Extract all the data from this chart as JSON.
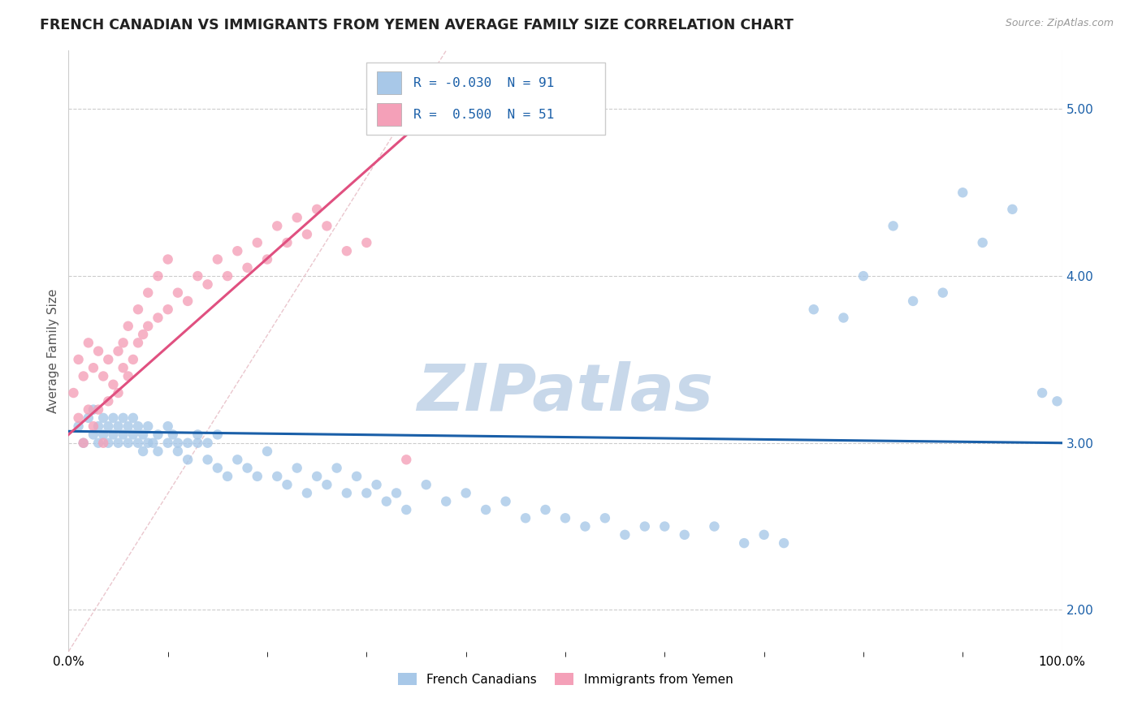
{
  "title": "FRENCH CANADIAN VS IMMIGRANTS FROM YEMEN AVERAGE FAMILY SIZE CORRELATION CHART",
  "source_text": "Source: ZipAtlas.com",
  "ylabel": "Average Family Size",
  "x_min": 0.0,
  "x_max": 1.0,
  "y_min": 1.75,
  "y_max": 5.35,
  "y_ticks": [
    2.0,
    3.0,
    4.0,
    5.0
  ],
  "legend_label_1": "French Canadians",
  "legend_label_2": "Immigrants from Yemen",
  "r1": "-0.030",
  "n1": "91",
  "r2": "0.500",
  "n2": "51",
  "color_blue": "#a8c8e8",
  "color_pink": "#f4a0b8",
  "color_blue_line": "#1a5fa8",
  "color_pink_line": "#e05080",
  "watermark": "ZIPatlas",
  "watermark_color": "#c8d8ea",
  "blue_scatter_x": [
    0.01,
    0.015,
    0.02,
    0.025,
    0.025,
    0.03,
    0.03,
    0.035,
    0.035,
    0.04,
    0.04,
    0.045,
    0.045,
    0.05,
    0.05,
    0.055,
    0.055,
    0.06,
    0.06,
    0.065,
    0.065,
    0.07,
    0.07,
    0.075,
    0.075,
    0.08,
    0.08,
    0.085,
    0.09,
    0.09,
    0.1,
    0.1,
    0.105,
    0.11,
    0.11,
    0.12,
    0.12,
    0.13,
    0.13,
    0.14,
    0.14,
    0.15,
    0.15,
    0.16,
    0.17,
    0.18,
    0.19,
    0.2,
    0.21,
    0.22,
    0.23,
    0.24,
    0.25,
    0.26,
    0.27,
    0.28,
    0.29,
    0.3,
    0.31,
    0.32,
    0.33,
    0.34,
    0.36,
    0.38,
    0.4,
    0.42,
    0.44,
    0.46,
    0.48,
    0.5,
    0.52,
    0.54,
    0.56,
    0.58,
    0.6,
    0.62,
    0.65,
    0.68,
    0.7,
    0.72,
    0.75,
    0.78,
    0.8,
    0.83,
    0.85,
    0.88,
    0.9,
    0.92,
    0.95,
    0.98,
    0.995
  ],
  "blue_scatter_y": [
    3.1,
    3.0,
    3.15,
    3.05,
    3.2,
    3.1,
    3.0,
    3.15,
    3.05,
    3.1,
    3.0,
    3.15,
    3.05,
    3.1,
    3.0,
    3.05,
    3.15,
    3.0,
    3.1,
    3.05,
    3.15,
    3.0,
    3.1,
    3.05,
    2.95,
    3.0,
    3.1,
    3.0,
    2.95,
    3.05,
    3.0,
    3.1,
    3.05,
    3.0,
    2.95,
    3.0,
    2.9,
    3.0,
    3.05,
    2.9,
    3.0,
    2.85,
    3.05,
    2.8,
    2.9,
    2.85,
    2.8,
    2.95,
    2.8,
    2.75,
    2.85,
    2.7,
    2.8,
    2.75,
    2.85,
    2.7,
    2.8,
    2.7,
    2.75,
    2.65,
    2.7,
    2.6,
    2.75,
    2.65,
    2.7,
    2.6,
    2.65,
    2.55,
    2.6,
    2.55,
    2.5,
    2.55,
    2.45,
    2.5,
    2.5,
    2.45,
    2.5,
    2.4,
    2.45,
    2.4,
    3.8,
    3.75,
    4.0,
    4.3,
    3.85,
    3.9,
    4.5,
    4.2,
    4.4,
    3.3,
    3.25
  ],
  "pink_scatter_x": [
    0.005,
    0.01,
    0.01,
    0.015,
    0.015,
    0.02,
    0.02,
    0.025,
    0.025,
    0.03,
    0.03,
    0.035,
    0.035,
    0.04,
    0.04,
    0.045,
    0.05,
    0.05,
    0.055,
    0.055,
    0.06,
    0.06,
    0.065,
    0.07,
    0.07,
    0.075,
    0.08,
    0.08,
    0.09,
    0.09,
    0.1,
    0.1,
    0.11,
    0.12,
    0.13,
    0.14,
    0.15,
    0.16,
    0.17,
    0.18,
    0.19,
    0.2,
    0.21,
    0.22,
    0.23,
    0.24,
    0.25,
    0.26,
    0.28,
    0.3,
    0.34
  ],
  "pink_scatter_y": [
    3.3,
    3.5,
    3.15,
    3.4,
    3.0,
    3.6,
    3.2,
    3.45,
    3.1,
    3.55,
    3.2,
    3.4,
    3.0,
    3.5,
    3.25,
    3.35,
    3.55,
    3.3,
    3.45,
    3.6,
    3.4,
    3.7,
    3.5,
    3.6,
    3.8,
    3.65,
    3.7,
    3.9,
    3.75,
    4.0,
    3.8,
    4.1,
    3.9,
    3.85,
    4.0,
    3.95,
    4.1,
    4.0,
    4.15,
    4.05,
    4.2,
    4.1,
    4.3,
    4.2,
    4.35,
    4.25,
    4.4,
    4.3,
    4.15,
    4.2,
    2.9
  ]
}
